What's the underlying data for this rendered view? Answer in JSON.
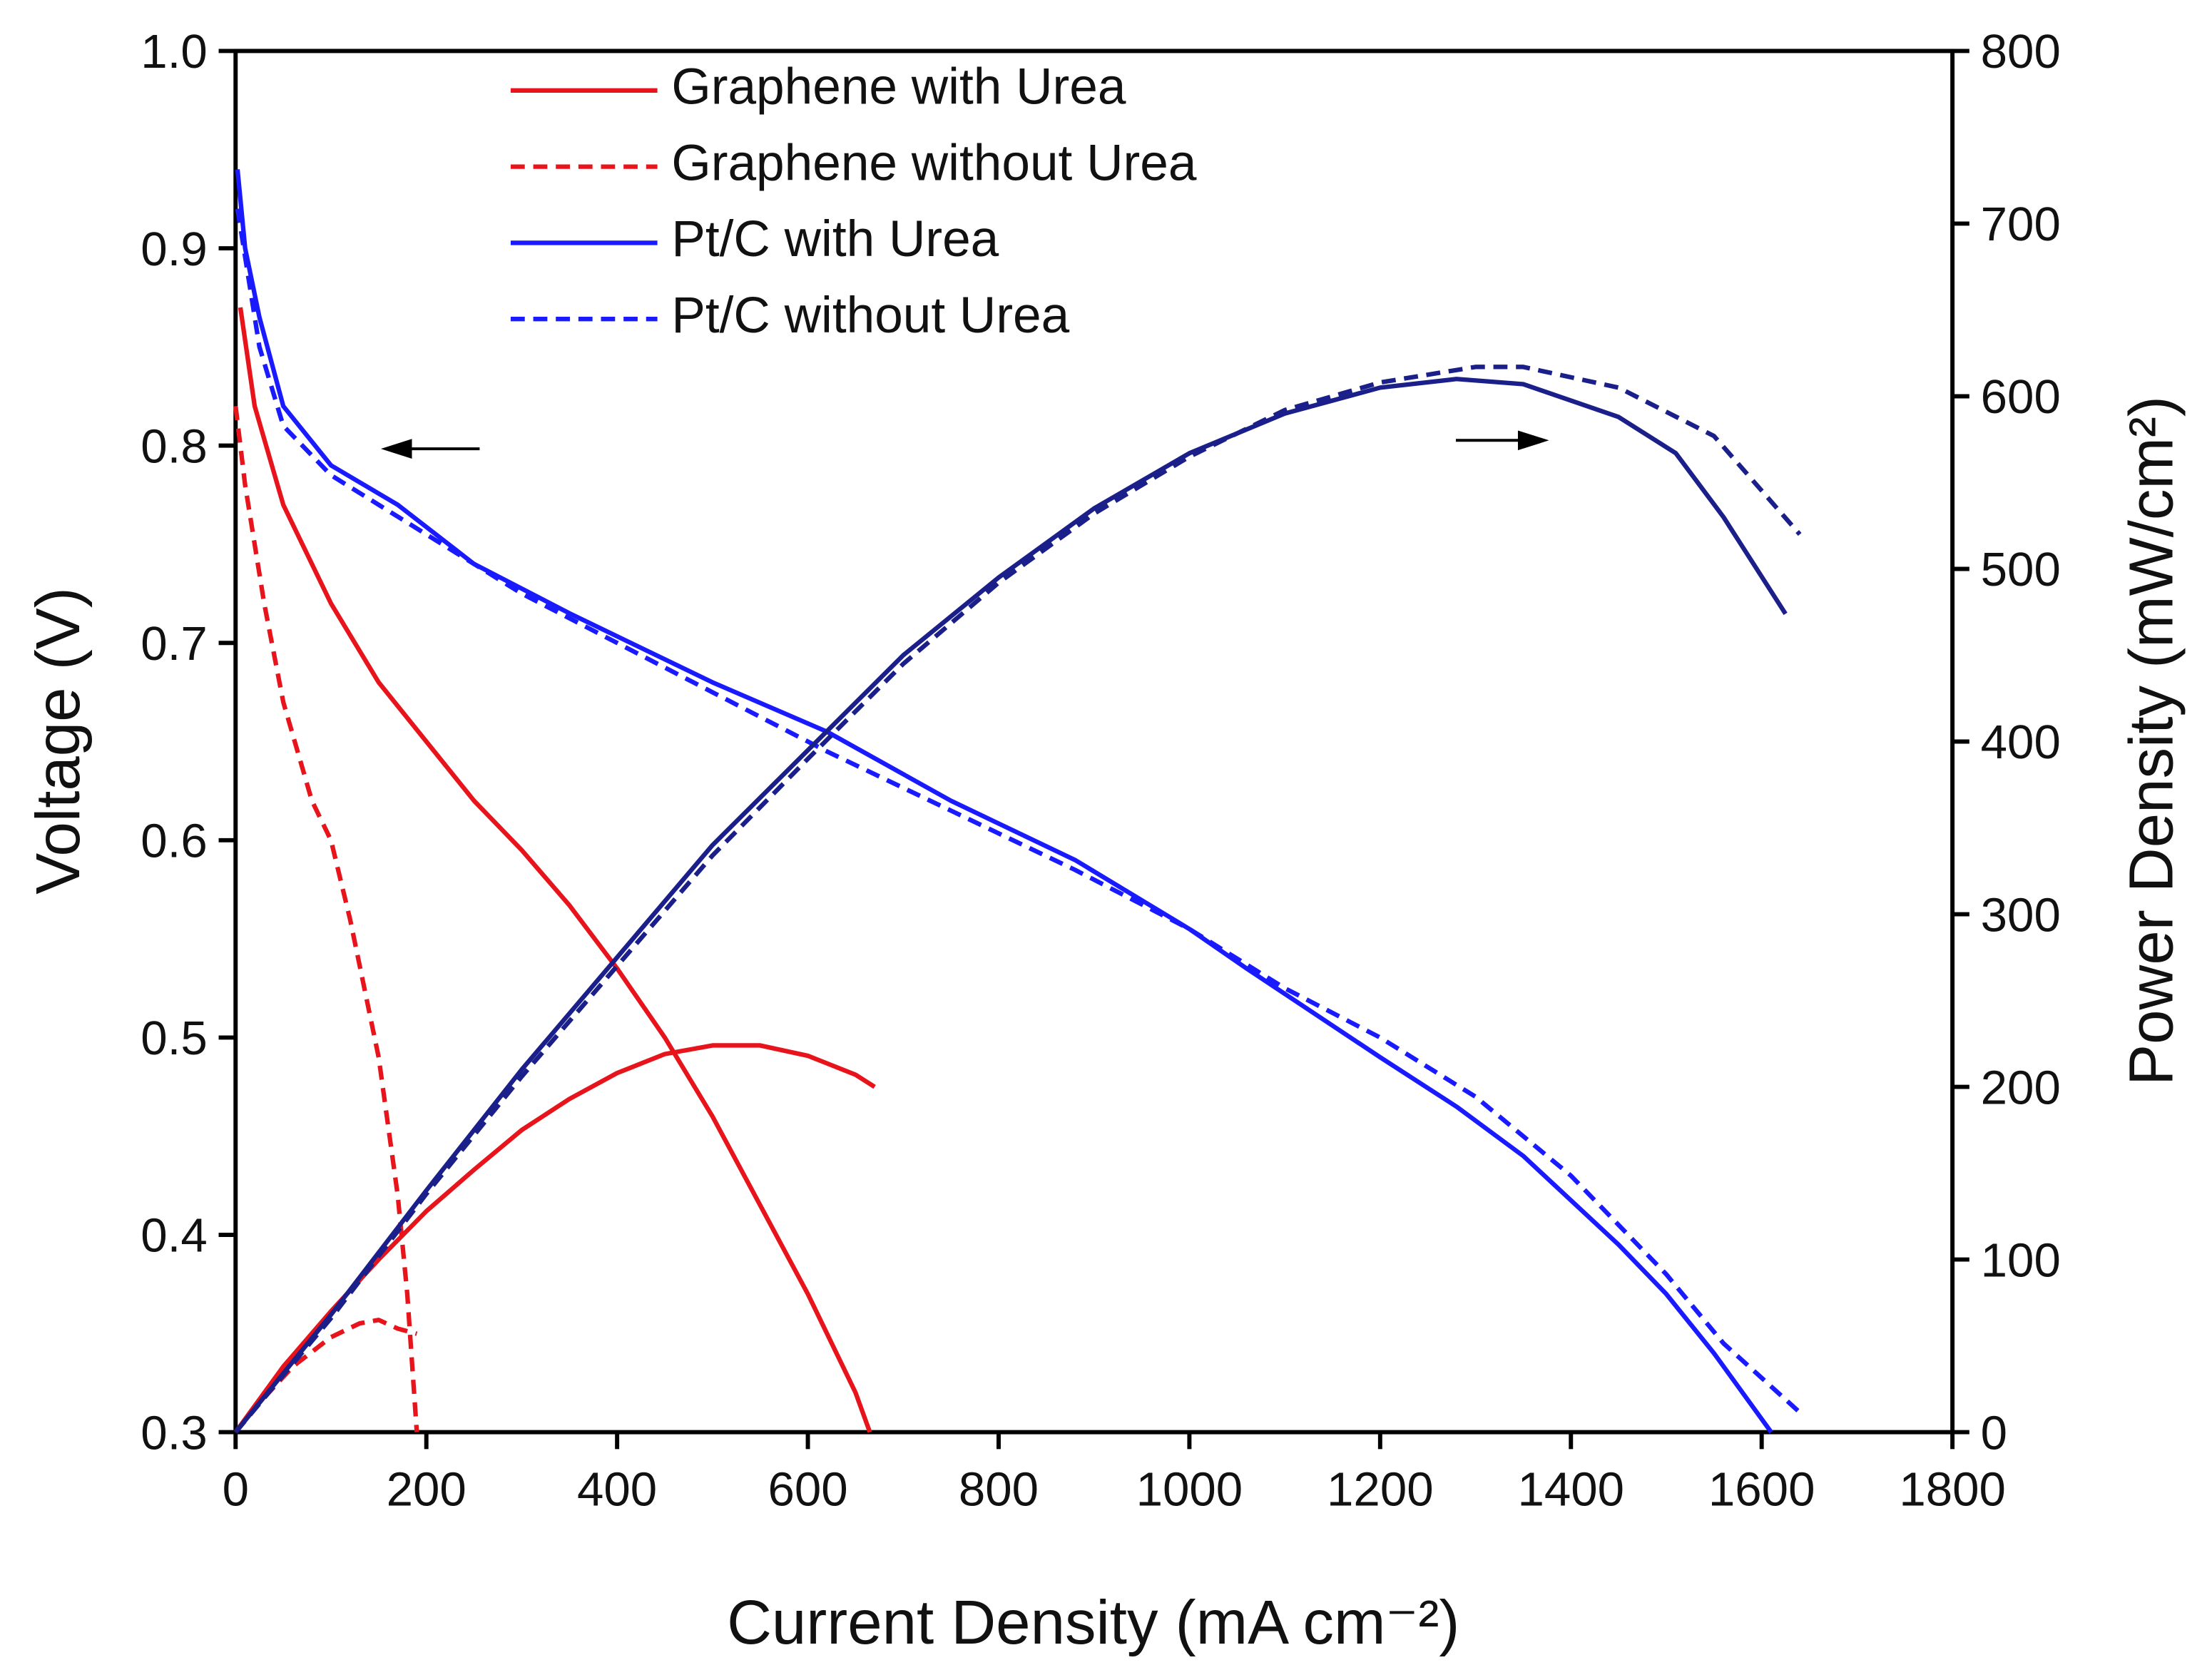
{
  "chart_data": {
    "type": "line",
    "xlabel": "Current Density (mA cm⁻²)",
    "ylabel": "Voltage (V)",
    "y2label": "Power Density (mW/cm²)",
    "xlim": [
      0,
      1800
    ],
    "xticks": [
      0,
      200,
      400,
      600,
      800,
      1000,
      1200,
      1400,
      1600,
      1800
    ],
    "ylim": [
      0.3,
      1.0
    ],
    "yticks": [
      0.3,
      0.4,
      0.5,
      0.6,
      0.7,
      0.8,
      0.9,
      {
        "value": 1.0,
        "label": "1.0"
      }
    ],
    "y2lim": [
      0,
      800
    ],
    "y2ticks": [
      0,
      100,
      200,
      300,
      400,
      500,
      600,
      700,
      800
    ],
    "series": [
      {
        "name": "Graphene with Urea",
        "color": "#e8141c",
        "dash": false,
        "x": [
          5,
          20,
          50,
          100,
          150,
          200,
          250,
          300,
          350,
          400,
          450,
          500,
          550,
          600,
          650,
          665
        ],
        "values": [
          0.87,
          0.82,
          0.77,
          0.72,
          0.68,
          0.65,
          0.62,
          0.595,
          0.567,
          0.535,
          0.5,
          0.46,
          0.415,
          0.37,
          0.32,
          0.3
        ]
      },
      {
        "name": "Graphene without Urea",
        "color": "#e8141c",
        "dash": true,
        "x": [
          0,
          10,
          30,
          50,
          80,
          100,
          120,
          150,
          170,
          180,
          190
        ],
        "values": [
          0.82,
          0.78,
          0.72,
          0.67,
          0.62,
          0.6,
          0.56,
          0.49,
          0.42,
          0.37,
          0.3
        ]
      },
      {
        "name": "Pt/C with Urea",
        "color": "#1a1aff",
        "dash": false,
        "x": [
          2,
          10,
          25,
          50,
          100,
          170,
          250,
          350,
          500,
          620,
          750,
          880,
          1000,
          1060,
          1200,
          1280,
          1350,
          1450,
          1500,
          1550,
          1610
        ],
        "values": [
          0.94,
          0.9,
          0.865,
          0.82,
          0.79,
          0.77,
          0.74,
          0.715,
          0.68,
          0.655,
          0.62,
          0.59,
          0.555,
          0.535,
          0.49,
          0.465,
          0.44,
          0.395,
          0.37,
          0.34,
          0.3
        ]
      },
      {
        "name": "Pt/C without Urea",
        "color": "#1a1aff",
        "dash": true,
        "x": [
          2,
          25,
          50,
          100,
          200,
          300,
          500,
          620,
          750,
          880,
          1000,
          1100,
          1200,
          1300,
          1400,
          1500,
          1560,
          1640
        ],
        "values": [
          0.92,
          0.85,
          0.81,
          0.785,
          0.755,
          0.725,
          0.675,
          0.645,
          0.615,
          0.585,
          0.555,
          0.525,
          0.5,
          0.47,
          0.43,
          0.38,
          0.345,
          0.31
        ]
      },
      {
        "axis": "y2",
        "color": "#e8141c",
        "dash": false,
        "x": [
          0,
          50,
          100,
          150,
          200,
          250,
          300,
          350,
          400,
          450,
          500,
          550,
          600,
          650,
          670
        ],
        "values": [
          0,
          38,
          70,
          100,
          128,
          152,
          175,
          193,
          208,
          219,
          224,
          224,
          218,
          207,
          200
        ]
      },
      {
        "axis": "y2",
        "color": "#e8141c",
        "dash": true,
        "x": [
          0,
          30,
          60,
          100,
          130,
          150,
          170,
          190
        ],
        "values": [
          0,
          20,
          38,
          55,
          63,
          65,
          60,
          57
        ]
      },
      {
        "axis": "y2",
        "color": "#1b1f8a",
        "dash": false,
        "x": [
          0,
          100,
          200,
          300,
          400,
          500,
          600,
          700,
          800,
          900,
          1000,
          1100,
          1200,
          1280,
          1350,
          1450,
          1510,
          1560,
          1625
        ],
        "values": [
          0,
          68,
          140,
          210,
          275,
          340,
          395,
          450,
          495,
          535,
          567,
          590,
          605,
          610,
          607,
          588,
          567,
          530,
          474
        ]
      },
      {
        "axis": "y2",
        "color": "#1b1f8a",
        "dash": true,
        "x": [
          0,
          100,
          200,
          300,
          400,
          500,
          600,
          700,
          800,
          900,
          1000,
          1100,
          1200,
          1300,
          1350,
          1450,
          1550,
          1640
        ],
        "values": [
          0,
          66,
          138,
          206,
          270,
          334,
          390,
          445,
          492,
          532,
          565,
          592,
          608,
          617,
          617,
          605,
          577,
          520
        ]
      }
    ]
  }
}
